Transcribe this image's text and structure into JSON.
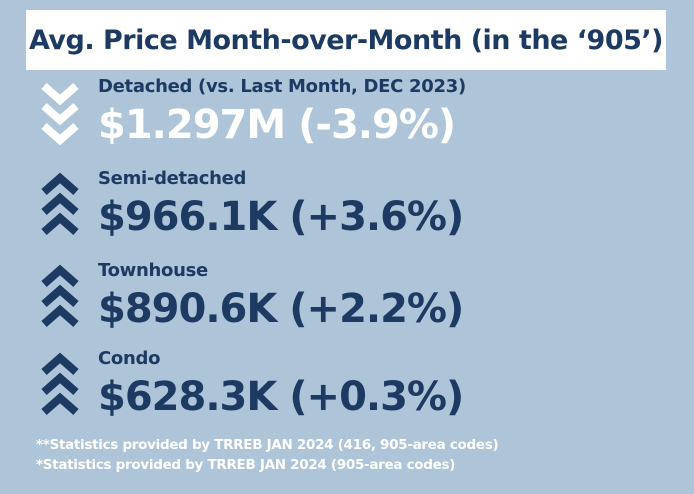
{
  "title": "Avg. Price Month-over-Month (in the ‘905’)",
  "colors": {
    "background": "#aec4d9",
    "navy": "#1d3a62",
    "white": "#ffffff"
  },
  "items": [
    {
      "label": "Detached (vs. Last Month, DEC 2023)",
      "value": "$1.297M (-3.9%)",
      "direction": "down",
      "icon": "double-chevron-down-icon"
    },
    {
      "label": "Semi-detached",
      "value": "$966.1K (+3.6%)",
      "direction": "up",
      "icon": "double-chevron-up-icon"
    },
    {
      "label": "Townhouse",
      "value": "$890.6K (+2.2%)",
      "direction": "up",
      "icon": "double-chevron-up-icon"
    },
    {
      "label": "Condo",
      "value": "$628.3K (+0.3%)",
      "direction": "up",
      "icon": "double-chevron-up-icon"
    }
  ],
  "footnotes": [
    "**Statistics provided by TRREB JAN 2024 (416, 905-area codes)",
    "*Statistics provided by TRREB JAN 2024 (905-area codes)"
  ]
}
